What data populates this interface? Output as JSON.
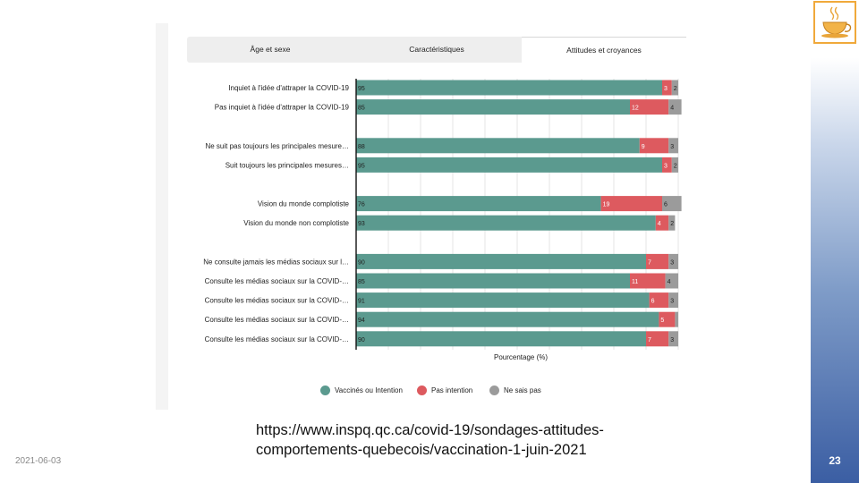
{
  "slide": {
    "date": "2021-06-03",
    "page_number": "23",
    "source_url": "https://www.inspq.qc.ca/covid-19/sondages-attitudes-comportements-quebecois/vaccination-1-juin-2021",
    "logo_icon": "coffee-cup-icon"
  },
  "tabs": [
    {
      "label": "Âge et sexe",
      "active": false
    },
    {
      "label": "Caractéristiques",
      "active": false
    },
    {
      "label": "Attitudes et croyances",
      "active": true
    }
  ],
  "chart_data": {
    "type": "bar",
    "orientation": "horizontal",
    "stacked": true,
    "xlabel": "Pourcentage (%)",
    "xlim": [
      0,
      100
    ],
    "categories": [
      "Inquiet à l'idée d'attraper la COVID-19",
      "Pas inquiet à l'idée d'attraper la COVID-19",
      "Ne suit pas toujours les principales mesure…",
      "Suit toujours les principales mesures…",
      "Vision du monde complotiste",
      "Vision du monde non complotiste",
      "Ne consulte jamais les médias sociaux sur l…",
      "Consulte les médias sociaux sur la COVID-…",
      "Consulte les médias sociaux sur la COVID-…",
      "Consulte les médias sociaux sur la COVID-…",
      "Consulte les médias sociaux sur la COVID-…"
    ],
    "groups": [
      0,
      0,
      1,
      1,
      2,
      2,
      3,
      3,
      3,
      3,
      3
    ],
    "series": [
      {
        "name": "Vaccinés ou Intention",
        "color": "#5b9a8f",
        "values": [
          95,
          85,
          88,
          95,
          76,
          93,
          90,
          85,
          91,
          94,
          90
        ]
      },
      {
        "name": "Pas intention",
        "color": "#dd5a5f",
        "values": [
          3,
          12,
          9,
          3,
          19,
          4,
          7,
          11,
          6,
          5,
          7
        ]
      },
      {
        "name": "Ne sais pas",
        "color": "#9b9b9b",
        "values": [
          2,
          4,
          3,
          2,
          6,
          2,
          3,
          4,
          3,
          1,
          3
        ]
      }
    ],
    "data_labels": [
      [
        "95",
        "3",
        "2"
      ],
      [
        "85",
        "12",
        "4"
      ],
      [
        "88",
        "9",
        "3"
      ],
      [
        "95",
        "3",
        "2"
      ],
      [
        "76",
        "19",
        "6"
      ],
      [
        "93",
        "4",
        "2"
      ],
      [
        "90",
        "7",
        "3"
      ],
      [
        "85",
        "11",
        "4"
      ],
      [
        "91",
        "6",
        "3"
      ],
      [
        "94",
        "5",
        ""
      ],
      [
        "90",
        "7",
        "3"
      ]
    ],
    "legend_position": "bottom"
  }
}
